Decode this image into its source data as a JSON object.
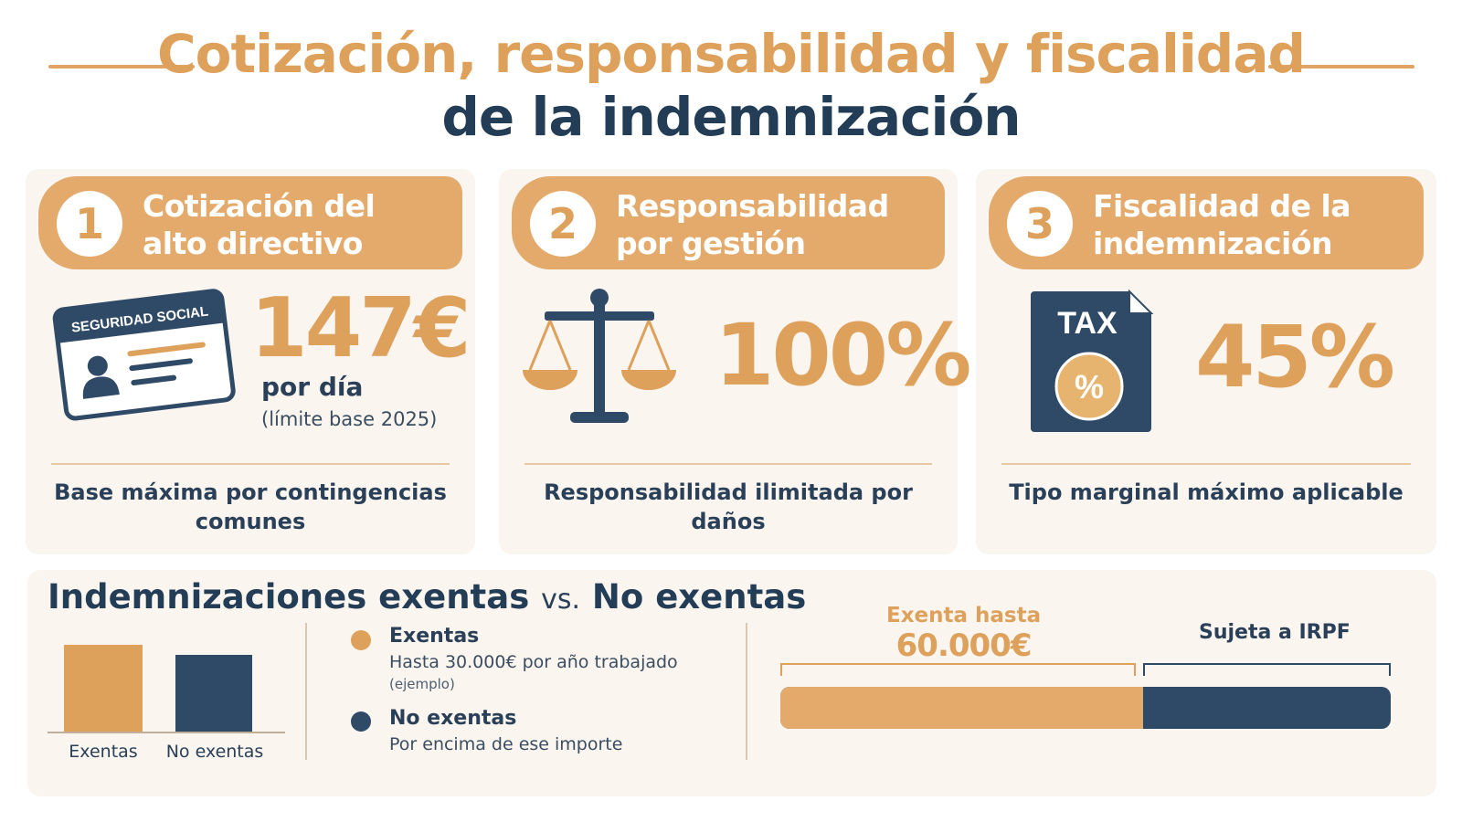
{
  "title": {
    "line1": "Cotización, responsabilidad y fiscalidad",
    "line2": "de la indemnización"
  },
  "colors": {
    "accent": "#dea15c",
    "navy": "#2f4a66",
    "card_bg": "#faf5ef"
  },
  "cards": [
    {
      "number": "1",
      "heading": "Cotización del alto directivo",
      "icon": "social-security-card-icon",
      "card_label": "SEGURIDAD SOCIAL",
      "value": "147€",
      "value_sub": "por día",
      "value_note": "(límite base 2025)",
      "caption": "Base máxima por contingencias comunes"
    },
    {
      "number": "2",
      "heading": "Responsabilidad por gestión",
      "icon": "scales-of-justice-icon",
      "value": "100%",
      "caption": "Responsabilidad ilimitada por daños"
    },
    {
      "number": "3",
      "heading": "Fiscalidad de la indemnización",
      "icon": "tax-document-icon",
      "icon_label": "TAX",
      "icon_badge": "%",
      "value": "45%",
      "caption": "Tipo marginal máximo aplicable"
    }
  ],
  "comparison": {
    "title_a": "Indemnizaciones exentas",
    "title_vs": "vs.",
    "title_b": "No exentas",
    "mini_chart": {
      "bars": [
        {
          "label": "Exentas",
          "relative_height": 1.0,
          "color": "#dea15c"
        },
        {
          "label": "No exentas",
          "relative_height": 0.89,
          "color": "#2f4a66"
        }
      ]
    },
    "legend": [
      {
        "title": "Exentas",
        "text": "Hasta 30.000€ por año trabajado",
        "note": "(ejemplo)",
        "color": "#dea15c"
      },
      {
        "title": "No exentas",
        "text": "Por encima de ese importe",
        "note": "",
        "color": "#2f4a66"
      }
    ],
    "progress": {
      "exempt_label_1": "Exenta hasta",
      "exempt_label_2": "60.000€",
      "taxed_label": "Sujeta a IRPF",
      "exempt_fraction": 0.595
    }
  }
}
